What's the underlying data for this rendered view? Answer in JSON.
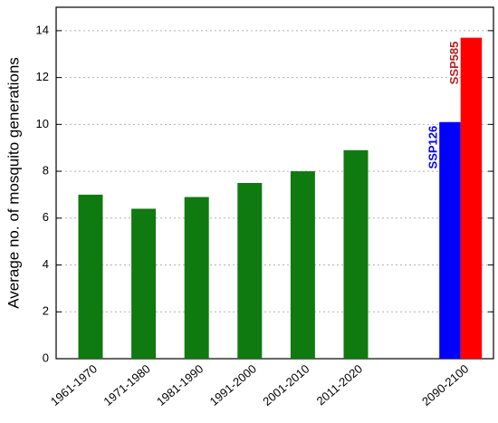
{
  "chart_data": {
    "type": "bar",
    "y_label": "Average no. of mosquito generations",
    "categories": [
      "1961-1970",
      "1971-1980",
      "1981-1990",
      "1991-2000",
      "2001-2010",
      "2011-2020",
      null,
      "2090-2100"
    ],
    "series": [
      {
        "color": "#0f7a0f",
        "values": [
          7.0,
          6.4,
          6.9,
          7.5,
          8.0,
          8.9,
          null,
          null
        ]
      },
      {
        "name": "SSP126",
        "color": "#0000ff",
        "values": [
          null,
          null,
          null,
          null,
          null,
          null,
          null,
          10.1
        ]
      },
      {
        "name": "SSP585",
        "color": "#ff0000",
        "values": [
          null,
          null,
          null,
          null,
          null,
          null,
          null,
          13.7
        ]
      }
    ],
    "ylim": [
      0,
      15
    ],
    "yticks": [
      0,
      2,
      4,
      6,
      8,
      10,
      12,
      14
    ],
    "grid": true
  }
}
